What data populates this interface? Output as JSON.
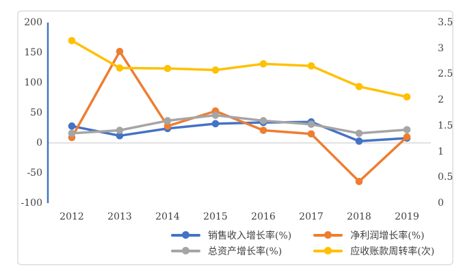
{
  "chart_data": {
    "type": "line",
    "categories": [
      "2012",
      "2013",
      "2014",
      "2015",
      "2016",
      "2017",
      "2018",
      "2019"
    ],
    "series": [
      {
        "name": "销售收入增长率(%)",
        "axis": "left",
        "color": "#4472C4",
        "values": [
          28,
          12,
          24,
          32,
          34,
          35,
          3,
          8
        ]
      },
      {
        "name": "净利润增长率(%)",
        "axis": "left",
        "color": "#ED7D31",
        "values": [
          9,
          152,
          28,
          53,
          21,
          15,
          -64,
          10
        ]
      },
      {
        "name": "总资产增长率(%)",
        "axis": "left",
        "color": "#A5A5A5",
        "values": [
          16,
          21,
          37,
          46,
          37,
          31,
          16,
          22
        ]
      },
      {
        "name": "应收账款周转率(次)",
        "axis": "right",
        "color": "#FFC000",
        "values": [
          3.15,
          2.62,
          2.61,
          2.58,
          2.7,
          2.66,
          2.26,
          2.06
        ]
      }
    ],
    "left_axis": {
      "min": -100,
      "max": 200,
      "tick_step": 50,
      "tick_labels": [
        "200",
        "150",
        "100",
        "50",
        "0",
        "-50",
        "-100"
      ],
      "line_color": "#4472C4"
    },
    "right_axis": {
      "min": 0,
      "max": 3.5,
      "tick_step": 0.5,
      "tick_labels": [
        "3.5",
        "3",
        "2.5",
        "2",
        "1.5",
        "1",
        "0.5",
        "0"
      ]
    },
    "grid": {
      "zero_line": true,
      "zero_line_color": "#D9D9D9"
    },
    "legend_position": "bottom"
  },
  "colors": {
    "text": "#404040",
    "chart_border": "#E4E4E4",
    "background": "#FFFFFF"
  }
}
